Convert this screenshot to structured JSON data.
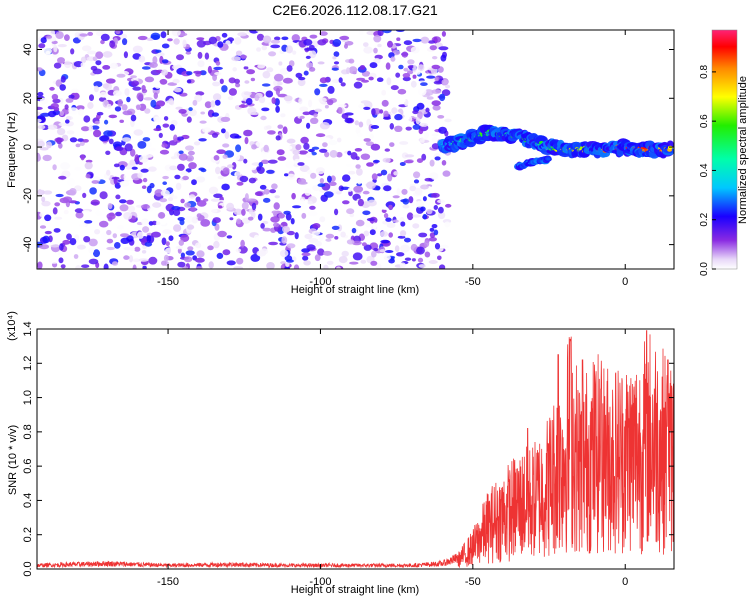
{
  "title": "C2E6.2026.112.08.17.G21",
  "chart_data": [
    {
      "type": "heatmap",
      "xlabel": "Height of straight line (km)",
      "ylabel": "Frequency (Hz)",
      "xlim": [
        -193,
        16
      ],
      "ylim": [
        -50,
        48
      ],
      "xticks": [
        -150,
        -100,
        -50,
        0
      ],
      "yticks": [
        -40,
        -20,
        0,
        20,
        40
      ],
      "colorbar": {
        "label": "Normalized spectral amplitude",
        "range": [
          0,
          0.97
        ],
        "ticks": [
          "0.0",
          "0.2",
          "0.4",
          "0.6",
          "0.8"
        ],
        "tick_values": [
          0,
          0.2,
          0.4,
          0.6,
          0.8
        ]
      },
      "noise_region": {
        "x_range": [
          -193,
          -58
        ],
        "freq_range": [
          -50,
          48
        ],
        "amplitude_range": [
          0.0,
          0.25
        ]
      },
      "signal_track": [
        {
          "x": -60,
          "freq": 0,
          "amplitude": 0.35
        },
        {
          "x": -55,
          "freq": 2,
          "amplitude": 0.45
        },
        {
          "x": -50,
          "freq": 4,
          "amplitude": 0.5
        },
        {
          "x": -45,
          "freq": 6,
          "amplitude": 0.55
        },
        {
          "x": -40,
          "freq": 5,
          "amplitude": 0.5
        },
        {
          "x": -35,
          "freq": 5,
          "amplitude": 0.5
        },
        {
          "x": -30,
          "freq": 2,
          "amplitude": 0.55
        },
        {
          "x": -25,
          "freq": 0,
          "amplitude": 0.6
        },
        {
          "x": -20,
          "freq": -1,
          "amplitude": 0.65
        },
        {
          "x": -15,
          "freq": -1,
          "amplitude": 0.7
        },
        {
          "x": -10,
          "freq": -1,
          "amplitude": 0.75
        },
        {
          "x": -5,
          "freq": -1,
          "amplitude": 0.8
        },
        {
          "x": 0,
          "freq": 0,
          "amplitude": 0.95
        },
        {
          "x": 5,
          "freq": -1,
          "amplitude": 0.85
        },
        {
          "x": 10,
          "freq": -1,
          "amplitude": 0.8
        },
        {
          "x": 15,
          "freq": -1,
          "amplitude": 0.75
        }
      ],
      "secondary_track": [
        {
          "x": -35,
          "freq": -8,
          "amplitude": 0.3
        },
        {
          "x": -30,
          "freq": -6,
          "amplitude": 0.35
        },
        {
          "x": -25,
          "freq": -5,
          "amplitude": 0.3
        }
      ]
    },
    {
      "type": "line",
      "xlabel": "Height of straight line (km)",
      "ylabel": "SNR (10 * v/v)",
      "scale_label": "(x10⁴)",
      "xlim": [
        -193,
        16
      ],
      "ylim": [
        0,
        1.4
      ],
      "xticks": [
        -150,
        -100,
        -50,
        0
      ],
      "yticks": [
        0.0,
        0.2,
        0.4,
        0.6,
        0.8,
        1.0,
        1.2,
        1.4
      ],
      "series": [
        {
          "color": "#ee3333",
          "x": [
            -193,
            -170,
            -150,
            -130,
            -110,
            -90,
            -70,
            -60,
            -55,
            -50,
            -45,
            -40,
            -35,
            -30,
            -25,
            -20,
            -18,
            -15,
            -10,
            -5,
            0,
            5,
            8,
            10,
            15,
            16
          ],
          "y": [
            0.02,
            0.03,
            0.02,
            0.025,
            0.02,
            0.02,
            0.02,
            0.03,
            0.06,
            0.15,
            0.3,
            0.38,
            0.45,
            0.48,
            0.6,
            0.78,
            0.95,
            0.72,
            0.82,
            0.78,
            0.8,
            0.84,
            0.92,
            0.9,
            0.78,
            0.8
          ]
        }
      ],
      "peaks": [
        {
          "x": -32,
          "y": 0.82
        },
        {
          "x": -22,
          "y": 1.25
        },
        {
          "x": -18,
          "y": 1.34
        },
        {
          "x": -14,
          "y": 1.22
        },
        {
          "x": -8,
          "y": 1.05
        },
        {
          "x": 7,
          "y": 1.39
        },
        {
          "x": 14,
          "y": 1.22
        }
      ]
    }
  ]
}
